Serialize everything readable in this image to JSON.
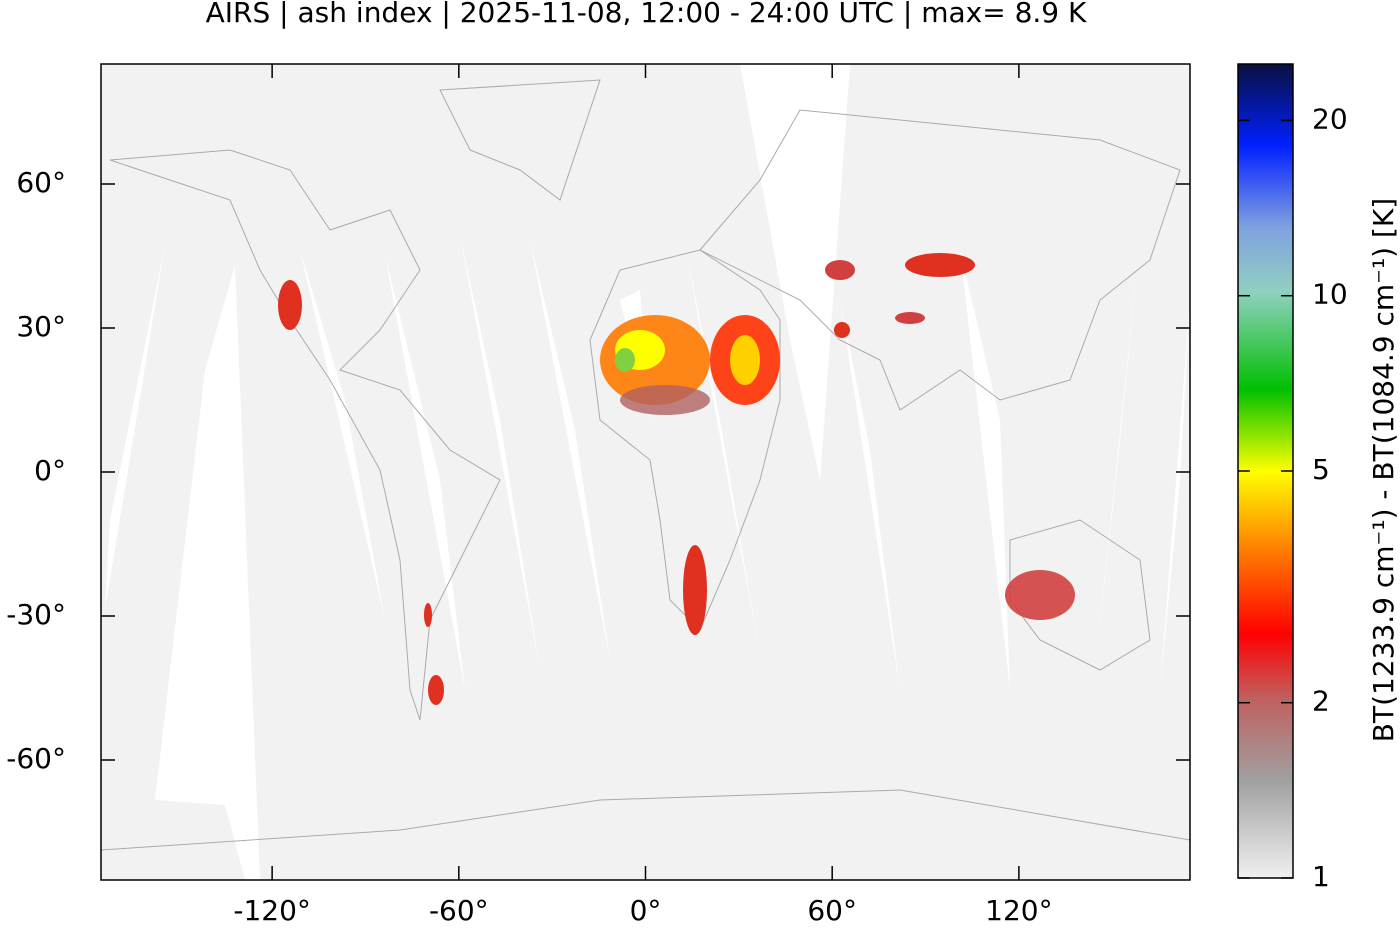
{
  "chart_data": {
    "type": "map",
    "title": "AIRS | ash index | 2025-11-08, 12:00 - 24:00 UTC | max= 8.9 K",
    "xlim": [
      -175,
      175
    ],
    "xticks": [
      {
        "value": -120,
        "label": "-120°"
      },
      {
        "value": -60,
        "label": "-60°"
      },
      {
        "value": 0,
        "label": "0°"
      },
      {
        "value": 60,
        "label": "60°"
      },
      {
        "value": 120,
        "label": "120°"
      }
    ],
    "ylim": [
      -85,
      85
    ],
    "yticks": [
      {
        "value": 60,
        "label": "60°"
      },
      {
        "value": 30,
        "label": "30°"
      },
      {
        "value": 0,
        "label": "0°"
      },
      {
        "value": -30,
        "label": "-30°"
      },
      {
        "value": -60,
        "label": "-60°"
      }
    ],
    "colorbar": {
      "label": "BT(1233.9 cm⁻¹) - BT(1084.9 cm⁻¹) [K]",
      "lim": [
        1,
        25
      ],
      "log_scale": true,
      "ticks": [
        1,
        2,
        5,
        10,
        20
      ]
    }
  }
}
